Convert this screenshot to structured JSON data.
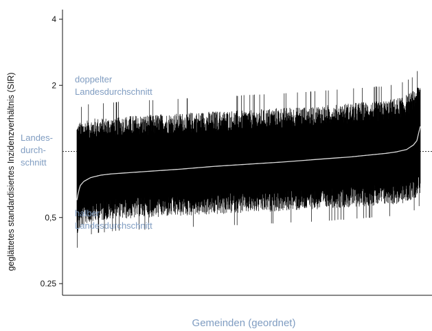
{
  "chart_data": {
    "type": "line",
    "title": "",
    "xlabel": "Gemeinden (geordnet)",
    "ylabel": "geglättetes standardisiertes Inzidenzverhältnis (SIR)",
    "y_scale": "log",
    "ylim": [
      0.22,
      4.3
    ],
    "y_ticks": [
      {
        "value": 0.25,
        "label": "0.25"
      },
      {
        "value": 0.5,
        "label": "0,5"
      },
      {
        "value": 2,
        "label": "2"
      },
      {
        "value": 4,
        "label": "4"
      }
    ],
    "reference_line": {
      "value": 1,
      "style": "dotted"
    },
    "annotations": {
      "doppelter": {
        "value": 2,
        "lines": [
          "doppelter",
          "Landesdurchschnitt"
        ]
      },
      "halber": {
        "value": 0.5,
        "lines": [
          "halber",
          "Landesdurchschnitt"
        ]
      },
      "landes": {
        "value": 1,
        "lines": [
          "Landes-",
          "durch-",
          "schnitt"
        ]
      }
    },
    "median_curve": {
      "x_fraction": [
        0,
        0.005,
        0.01,
        0.02,
        0.04,
        0.07,
        0.1,
        0.2,
        0.3,
        0.4,
        0.5,
        0.6,
        0.7,
        0.8,
        0.9,
        0.93,
        0.96,
        0.98,
        0.99,
        1.0
      ],
      "sir": [
        0.6,
        0.66,
        0.7,
        0.73,
        0.76,
        0.78,
        0.79,
        0.81,
        0.83,
        0.855,
        0.875,
        0.895,
        0.92,
        0.945,
        0.98,
        0.995,
        1.02,
        1.07,
        1.12,
        1.3
      ]
    },
    "upper_band": {
      "x_fraction": [
        0,
        0.01,
        0.03,
        0.1,
        0.3,
        0.5,
        0.7,
        0.9,
        0.95,
        0.98,
        1.0
      ],
      "sir": [
        1.2,
        1.22,
        1.25,
        1.28,
        1.33,
        1.38,
        1.44,
        1.52,
        1.58,
        1.68,
        1.85
      ]
    },
    "lower_band": {
      "x_fraction": [
        0,
        0.01,
        0.03,
        0.1,
        0.3,
        0.5,
        0.7,
        0.9,
        0.95,
        0.98,
        1.0
      ],
      "sir": [
        0.46,
        0.5,
        0.53,
        0.55,
        0.57,
        0.59,
        0.61,
        0.64,
        0.65,
        0.68,
        0.72
      ]
    }
  }
}
